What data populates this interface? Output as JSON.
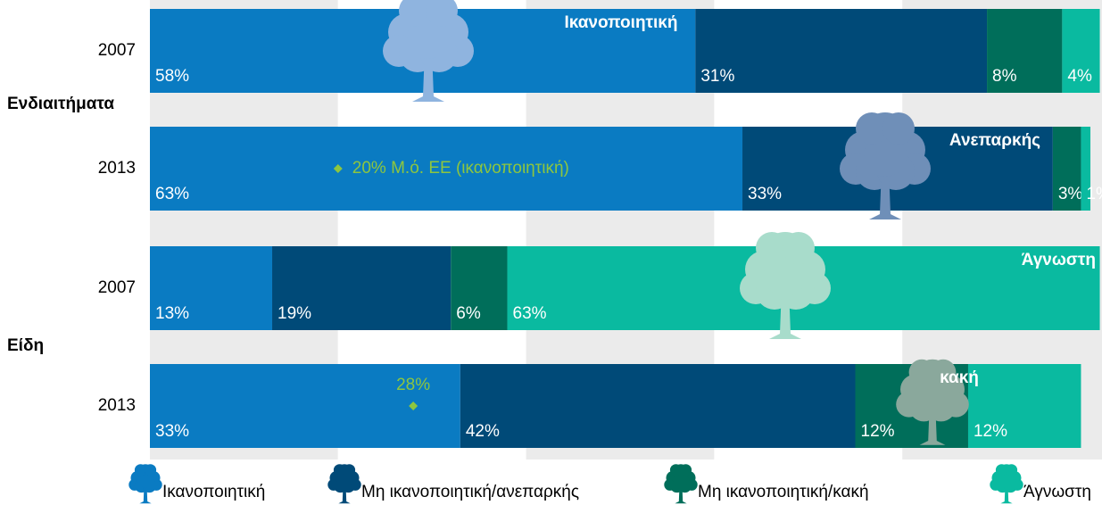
{
  "chart_data": {
    "type": "stacked_bar_horizontal",
    "categories": [
      "2007",
      "2013",
      "2007",
      "2013"
    ],
    "groups": [
      {
        "name": "Ενδιαιτήματα"
      },
      {
        "name": "Είδη"
      }
    ],
    "series": [
      {
        "name": "Ικανοποιητική",
        "color": "#0a7bc2",
        "values": [
          58,
          63,
          13,
          33
        ],
        "value_labels": [
          "58%",
          "63%",
          "13%",
          "33%"
        ]
      },
      {
        "name": "Μη ικανοποιητική/ανεπαρκής",
        "color": "#004a78",
        "values": [
          31,
          33,
          19,
          42
        ],
        "value_labels": [
          "31%",
          "33%",
          "19%",
          "42%"
        ]
      },
      {
        "name": "Μη ικανοποιητική/κακή",
        "color": "#006e5a",
        "values": [
          8,
          3,
          6,
          12
        ],
        "value_labels": [
          "8%",
          "3%",
          "6%",
          "12%"
        ]
      },
      {
        "name": "Άγνωστη",
        "color": "#0abaa0",
        "values": [
          4,
          1,
          63,
          12
        ],
        "value_labels": [
          "4%",
          "1%",
          "63%",
          "12%"
        ]
      }
    ],
    "annotations": [
      "Ικανοποιητική",
      "Ανεπαρκής",
      "Άγνωστη",
      "κακή"
    ],
    "eu_average": [
      {
        "value": 20,
        "label": "20% Μ.ό. ΕΕ (ικανοποιητική)"
      },
      {
        "value": 28,
        "label": "28%"
      }
    ],
    "eu_average_color": "#8dc63f",
    "xlim": [
      0,
      100
    ],
    "xticks": [
      0,
      20,
      40,
      60,
      80,
      100
    ],
    "grid": true
  }
}
